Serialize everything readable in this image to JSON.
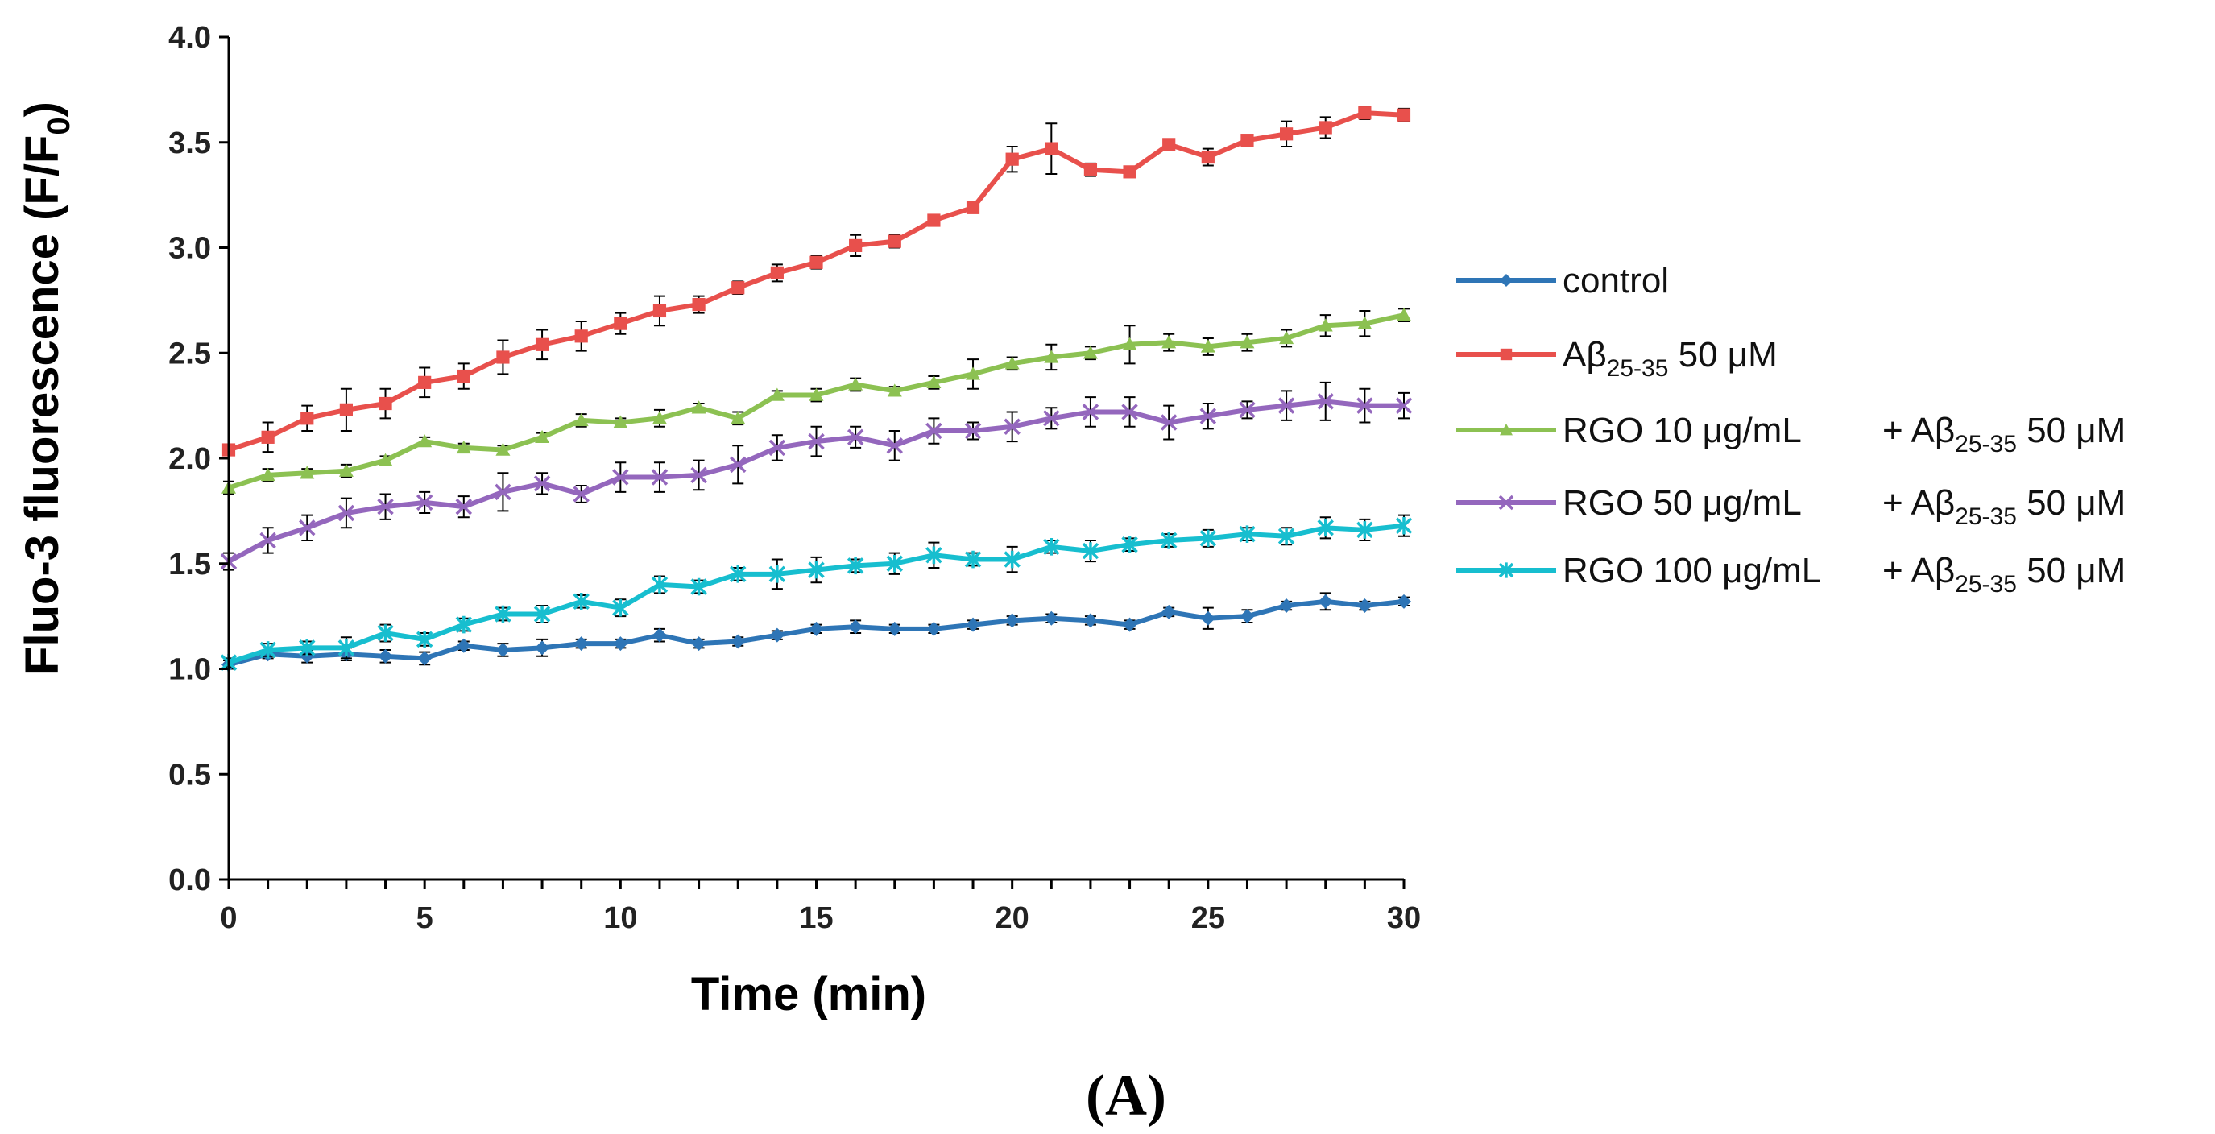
{
  "chart_data": {
    "type": "line",
    "xlabel": "Time (min)",
    "ylabel": "Fluo-3 fluorescence (F/F0)",
    "ylabel_parts": {
      "main": "Fluo-3 fluorescence (F/F",
      "sub": "0",
      "end": ")"
    },
    "xlim": [
      0,
      30
    ],
    "ylim": [
      0,
      4.0
    ],
    "xticks": [
      "0",
      "5",
      "10",
      "15",
      "20",
      "25",
      "30"
    ],
    "xtick_values": [
      0,
      5,
      10,
      15,
      20,
      25,
      30
    ],
    "yticks": [
      "0.0",
      "0.5",
      "1.0",
      "1.5",
      "2.0",
      "2.5",
      "3.0",
      "3.5",
      "4.0"
    ],
    "ytick_values": [
      0,
      0.5,
      1.0,
      1.5,
      2.0,
      2.5,
      3.0,
      3.5,
      4.0
    ],
    "grid": false,
    "legend_position": "right",
    "panel_label": "(A)",
    "x": [
      0,
      1,
      2,
      3,
      4,
      5,
      6,
      7,
      8,
      9,
      10,
      11,
      12,
      13,
      14,
      15,
      16,
      17,
      18,
      19,
      20,
      21,
      22,
      23,
      24,
      25,
      26,
      27,
      28,
      29,
      30
    ],
    "series": [
      {
        "name": "control",
        "legend": {
          "pre": "control",
          "sub": "",
          "post": "",
          "gap": "",
          "pre2": "",
          "sub2": "",
          "post2": ""
        },
        "color": "#2E75B6",
        "marker": "diamond",
        "values": [
          1.02,
          1.07,
          1.06,
          1.07,
          1.06,
          1.05,
          1.11,
          1.09,
          1.1,
          1.12,
          1.12,
          1.16,
          1.12,
          1.13,
          1.16,
          1.19,
          1.2,
          1.19,
          1.19,
          1.21,
          1.23,
          1.24,
          1.23,
          1.21,
          1.27,
          1.24,
          1.25,
          1.3,
          1.32,
          1.3,
          1.32
        ],
        "errors": [
          0.02,
          0.02,
          0.03,
          0.03,
          0.03,
          0.03,
          0.02,
          0.03,
          0.04,
          0.02,
          0.02,
          0.03,
          0.02,
          0.02,
          0.02,
          0.02,
          0.03,
          0.02,
          0.02,
          0.02,
          0.02,
          0.02,
          0.02,
          0.02,
          0.02,
          0.05,
          0.03,
          0.02,
          0.04,
          0.02,
          0.02
        ]
      },
      {
        "name": "Aβ25-35 50 μM",
        "legend": {
          "pre": "Aβ",
          "sub": "25-35",
          "post": "  50 μM",
          "gap": "",
          "pre2": "",
          "sub2": "",
          "post2": ""
        },
        "color": "#E8504C",
        "marker": "square",
        "values": [
          2.04,
          2.1,
          2.19,
          2.23,
          2.26,
          2.36,
          2.39,
          2.48,
          2.54,
          2.58,
          2.64,
          2.7,
          2.73,
          2.81,
          2.88,
          2.93,
          3.01,
          3.03,
          3.13,
          3.19,
          3.42,
          3.47,
          3.37,
          3.36,
          3.49,
          3.43,
          3.51,
          3.54,
          3.57,
          3.64,
          3.63
        ],
        "errors": [
          0.02,
          0.07,
          0.06,
          0.1,
          0.07,
          0.07,
          0.06,
          0.08,
          0.07,
          0.07,
          0.05,
          0.07,
          0.04,
          0.03,
          0.04,
          0.03,
          0.05,
          0.03,
          0.02,
          0.02,
          0.06,
          0.12,
          0.03,
          0.02,
          0.02,
          0.04,
          0.02,
          0.06,
          0.05,
          0.03,
          0.03
        ]
      },
      {
        "name": "RGO 10 μg/mL + Aβ25-35 50 μM",
        "legend": {
          "pre": "RGO 10 μg/mL",
          "sub": "",
          "post": "",
          "gap": "+ Aβ",
          "pre2": "",
          "sub2": "25-35",
          "post2": "  50 μM"
        },
        "color": "#8CC152",
        "marker": "triangle",
        "values": [
          1.86,
          1.92,
          1.93,
          1.94,
          1.99,
          2.08,
          2.05,
          2.04,
          2.1,
          2.18,
          2.17,
          2.19,
          2.24,
          2.19,
          2.3,
          2.3,
          2.35,
          2.32,
          2.36,
          2.4,
          2.45,
          2.48,
          2.5,
          2.54,
          2.55,
          2.53,
          2.55,
          2.57,
          2.63,
          2.64,
          2.68
        ],
        "errors": [
          0.03,
          0.03,
          0.02,
          0.03,
          0.02,
          0.02,
          0.02,
          0.02,
          0.02,
          0.03,
          0.02,
          0.04,
          0.02,
          0.03,
          0.02,
          0.03,
          0.03,
          0.02,
          0.03,
          0.07,
          0.03,
          0.06,
          0.03,
          0.09,
          0.04,
          0.04,
          0.04,
          0.04,
          0.05,
          0.06,
          0.03
        ]
      },
      {
        "name": "RGO 50 μg/mL + Aβ25-35 50 μM",
        "legend": {
          "pre": "RGO 50 μg/mL",
          "sub": "",
          "post": "",
          "gap": "+ Aβ",
          "pre2": "",
          "sub2": "25-35",
          "post2": "  50 μM"
        },
        "color": "#9467BD",
        "marker": "x",
        "values": [
          1.51,
          1.61,
          1.67,
          1.74,
          1.77,
          1.79,
          1.77,
          1.84,
          1.88,
          1.83,
          1.91,
          1.91,
          1.92,
          1.97,
          2.05,
          2.08,
          2.1,
          2.06,
          2.13,
          2.13,
          2.15,
          2.19,
          2.22,
          2.22,
          2.17,
          2.2,
          2.23,
          2.25,
          2.27,
          2.25,
          2.25
        ],
        "errors": [
          0.04,
          0.06,
          0.06,
          0.07,
          0.06,
          0.05,
          0.05,
          0.09,
          0.05,
          0.04,
          0.07,
          0.07,
          0.07,
          0.09,
          0.06,
          0.07,
          0.05,
          0.07,
          0.06,
          0.04,
          0.07,
          0.05,
          0.07,
          0.07,
          0.08,
          0.06,
          0.04,
          0.07,
          0.09,
          0.08,
          0.06
        ]
      },
      {
        "name": "RGO 100 μg/mL + Aβ25-35 50 μM",
        "legend": {
          "pre": "RGO 100 μg/mL",
          "sub": "",
          "post": "",
          "gap": "+ Aβ",
          "pre2": "",
          "sub2": "25-35",
          "post2": "  50 μM"
        },
        "color": "#17BECF",
        "marker": "star",
        "values": [
          1.03,
          1.09,
          1.1,
          1.1,
          1.17,
          1.14,
          1.21,
          1.26,
          1.26,
          1.32,
          1.29,
          1.4,
          1.39,
          1.45,
          1.45,
          1.47,
          1.49,
          1.5,
          1.54,
          1.52,
          1.52,
          1.58,
          1.56,
          1.59,
          1.61,
          1.62,
          1.64,
          1.63,
          1.67,
          1.66,
          1.68
        ],
        "errors": [
          0.02,
          0.03,
          0.03,
          0.05,
          0.04,
          0.03,
          0.03,
          0.03,
          0.04,
          0.03,
          0.04,
          0.04,
          0.03,
          0.03,
          0.07,
          0.06,
          0.03,
          0.05,
          0.06,
          0.03,
          0.06,
          0.03,
          0.05,
          0.03,
          0.03,
          0.04,
          0.03,
          0.04,
          0.05,
          0.05,
          0.05
        ]
      }
    ]
  }
}
